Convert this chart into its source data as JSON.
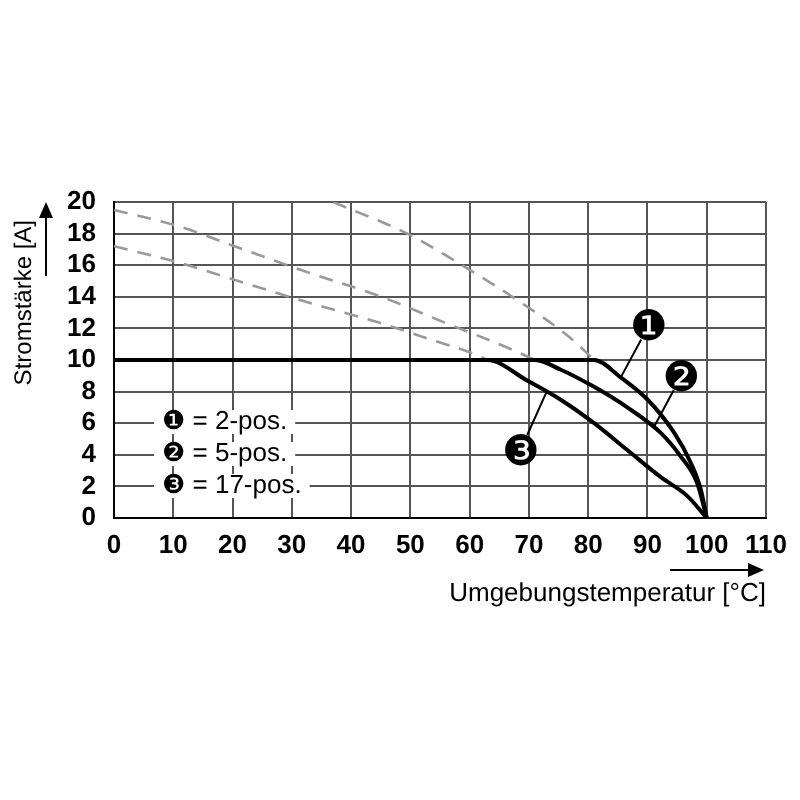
{
  "chart_data": {
    "type": "line",
    "xlabel": "Umgebungstemperatur [°C]",
    "ylabel": "Stromstärke [A]",
    "xlim": [
      0,
      110
    ],
    "xticks": [
      0,
      10,
      20,
      30,
      40,
      50,
      60,
      70,
      80,
      90,
      100,
      110
    ],
    "ylim": [
      0,
      20
    ],
    "yticks": [
      0,
      2,
      4,
      6,
      8,
      10,
      12,
      14,
      16,
      18,
      20
    ],
    "grid": true,
    "series": [
      {
        "color": "#000000",
        "line_style": "solid",
        "x": [
          0,
          81,
          85.5,
          90,
          94.5,
          97.3,
          99,
          100
        ],
        "values": [
          10,
          10,
          8.9,
          7.5,
          5.4,
          3.5,
          1.8,
          0
        ]
      },
      {
        "color": "#000000",
        "line_style": "solid",
        "x": [
          0,
          71,
          75.3,
          81,
          86.6,
          92.2,
          95.6,
          98.4,
          100
        ],
        "values": [
          10,
          10,
          9.4,
          8.3,
          7,
          5.4,
          3.9,
          2.2,
          0
        ]
      },
      {
        "color": "#000000",
        "line_style": "solid",
        "x": [
          0,
          63,
          69.7,
          75.3,
          81,
          86.6,
          92.2,
          96.7,
          100
        ],
        "values": [
          10,
          10,
          8.7,
          7.5,
          6,
          4.3,
          2.6,
          1.4,
          0
        ]
      },
      {
        "color": "#999999",
        "line_style": "dashed",
        "x": [
          37,
          50,
          60,
          68,
          77,
          81
        ],
        "values": [
          20,
          17.9,
          15.7,
          13.8,
          11.4,
          10
        ]
      },
      {
        "color": "#999999",
        "line_style": "dashed",
        "x": [
          0,
          10.6,
          21.8,
          33.1,
          44.4,
          55.6,
          66.9,
          71
        ],
        "values": [
          19.5,
          18.5,
          17,
          15.5,
          14.1,
          12.4,
          10.7,
          10
        ]
      },
      {
        "color": "#999999",
        "line_style": "dashed",
        "x": [
          0,
          10.6,
          21.8,
          33.1,
          44.4,
          53.4,
          61.3,
          63
        ],
        "values": [
          17.2,
          16.2,
          14.9,
          13.6,
          12.4,
          11.3,
          10.3,
          10
        ]
      }
    ],
    "annotations": [
      "❶ = 2-pos.",
      "❷ = 5-pos.",
      "❸ = 17-pos.",
      {
        "text": "❶",
        "x": 85.5,
        "y": 8.9
      },
      {
        "text": "❷",
        "x": 91,
        "y": 5.7
      },
      {
        "text": "❸",
        "x": 73,
        "y": 8
      }
    ]
  }
}
